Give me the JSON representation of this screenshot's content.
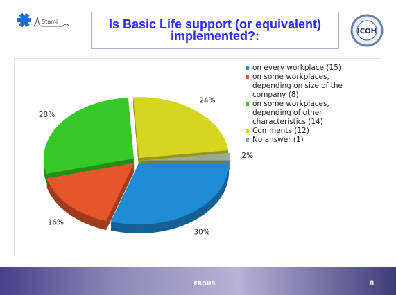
{
  "chart_data": {
    "type": "pie",
    "title": "Is Basic Life support (or equivalent) implemented?:",
    "categories": [
      "on every workplace (15)",
      "on some workplaces, depending on size of the company (8)",
      "on some workplaces, depending of other characteristics (14)",
      "Comments (12)",
      "No answer (1)"
    ],
    "values": [
      30,
      16,
      28,
      24,
      2
    ],
    "value_labels": [
      "30%",
      "16%",
      "28%",
      "24%",
      "2%"
    ],
    "colors": [
      "#1e8bd6",
      "#e5562b",
      "#35c926",
      "#d6d51f",
      "#9aaa98"
    ],
    "legend": "right"
  },
  "logos": {
    "left_text": "Stami",
    "right_text": "ICOH"
  },
  "footer": {
    "text": "EROHS",
    "page": "8"
  }
}
